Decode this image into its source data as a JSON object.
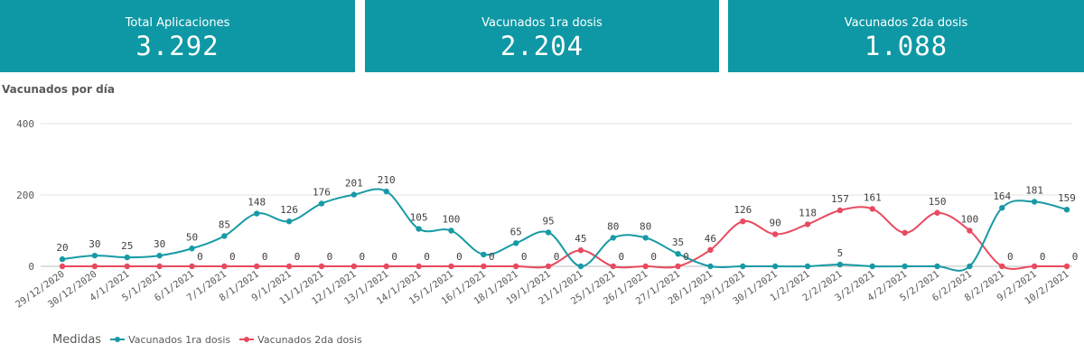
{
  "colors": {
    "kpi_background": "#0e98a5",
    "series1": "#179aa5",
    "series2": "#e84a5f",
    "grid": "#e3e3e3",
    "axis_text": "#595959"
  },
  "kpis": [
    {
      "label": "Total Aplicaciones",
      "value": "3.292"
    },
    {
      "label": "Vacunados 1ra dosis",
      "value": "2.204"
    },
    {
      "label": "Vacunados 2da dosis",
      "value": "1.088"
    }
  ],
  "chart_title": "Vacunados por día",
  "legend_title": "Medidas",
  "chart_data": {
    "type": "line",
    "title": "Vacunados por día",
    "categories": [
      "29/12/2020",
      "30/12/2020",
      "4/1/2021",
      "5/1/2021",
      "6/1/2021",
      "7/1/2021",
      "8/1/2021",
      "9/1/2021",
      "11/1/2021",
      "12/1/2021",
      "13/1/2021",
      "14/1/2021",
      "15/1/2021",
      "16/1/2021",
      "18/1/2021",
      "19/1/2021",
      "21/1/2021",
      "25/1/2021",
      "26/1/2021",
      "27/1/2021",
      "28/1/2021",
      "29/1/2021",
      "30/1/2021",
      "1/2/2021",
      "2/2/2021",
      "3/2/2021",
      "4/2/2021",
      "5/2/2021",
      "6/2/2021",
      "8/2/2021",
      "9/2/2021",
      "10/2/2021"
    ],
    "series": [
      {
        "name": "Vacunados 1ra dosis",
        "values": [
          20,
          30,
          25,
          30,
          50,
          85,
          148,
          126,
          176,
          201,
          210,
          105,
          100,
          33,
          65,
          95,
          0,
          80,
          80,
          35,
          0,
          0,
          0,
          0,
          5,
          0,
          0,
          0,
          0,
          164,
          181,
          159
        ],
        "labels": [
          "20",
          "30",
          "25",
          "30",
          "50",
          "85",
          "148",
          "126",
          "176",
          "201",
          "210",
          "105",
          "100",
          "",
          "65",
          "95",
          "",
          "80",
          "80",
          "35",
          "",
          "",
          "",
          "",
          "5",
          "",
          "",
          "",
          "",
          "164",
          "181",
          "159"
        ]
      },
      {
        "name": "Vacunados 2da dosis",
        "values": [
          0,
          0,
          0,
          0,
          0,
          0,
          0,
          0,
          0,
          0,
          0,
          0,
          0,
          0,
          0,
          0,
          45,
          0,
          0,
          0,
          46,
          126,
          90,
          118,
          157,
          161,
          94,
          150,
          100,
          0,
          0,
          0
        ],
        "labels": [
          "",
          "",
          "",
          "",
          "0",
          "0",
          "0",
          "0",
          "0",
          "0",
          "0",
          "0",
          "0",
          "0",
          "0",
          "0",
          "45",
          "0",
          "0",
          "0",
          "46",
          "126",
          "90",
          "118",
          "157",
          "161",
          "",
          "150",
          "100",
          "0",
          "0",
          "0"
        ]
      }
    ],
    "yticks": [
      0,
      200,
      400
    ],
    "ylim": [
      0,
      400
    ],
    "grid": true,
    "legend": "bottom-left"
  }
}
